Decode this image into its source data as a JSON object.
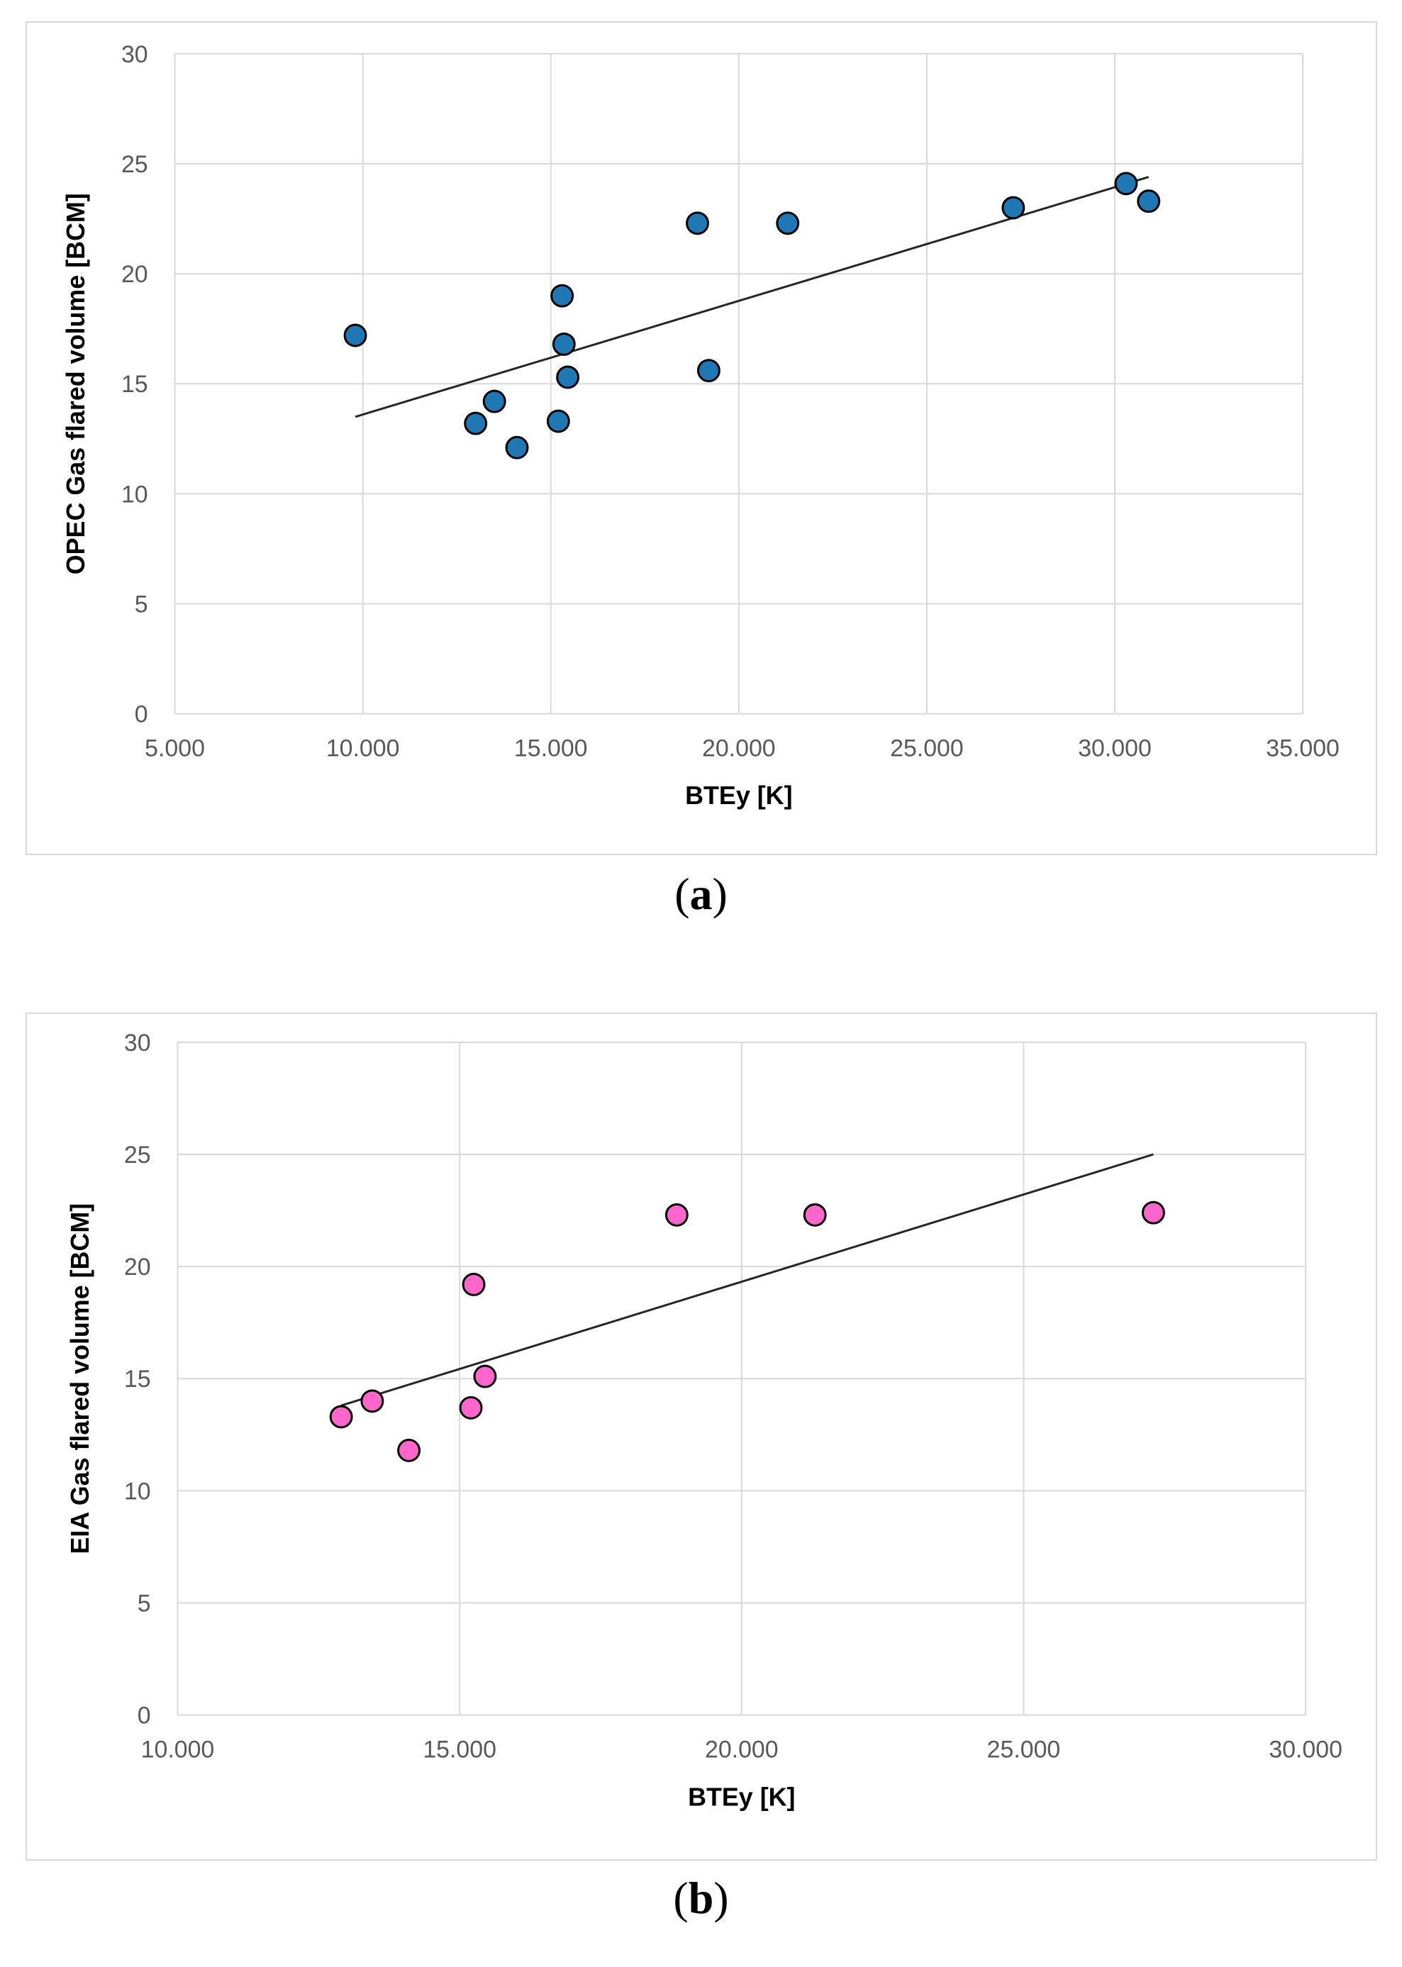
{
  "chart_data": [
    {
      "type": "scatter",
      "panel_label": "a",
      "xlabel": "BTEy [K]",
      "ylabel": "OPEC Gas flared volume [BCM]",
      "xlim": [
        5000,
        35000
      ],
      "ylim": [
        0,
        30
      ],
      "x_ticks": [
        "5.000",
        "10.000",
        "15.000",
        "20.000",
        "25.000",
        "30.000",
        "35.000"
      ],
      "y_ticks": [
        "0",
        "5",
        "10",
        "15",
        "20",
        "25",
        "30"
      ],
      "grid": true,
      "marker_color": "#1f77b4",
      "series": [
        {
          "points": [
            {
              "x": 9800,
              "y": 17.2
            },
            {
              "x": 13000,
              "y": 13.2
            },
            {
              "x": 13500,
              "y": 14.2
            },
            {
              "x": 14100,
              "y": 12.1
            },
            {
              "x": 15200,
              "y": 13.3
            },
            {
              "x": 15300,
              "y": 19.0
            },
            {
              "x": 15350,
              "y": 16.8
            },
            {
              "x": 15450,
              "y": 15.3
            },
            {
              "x": 18900,
              "y": 22.3
            },
            {
              "x": 19200,
              "y": 15.6
            },
            {
              "x": 21300,
              "y": 22.3
            },
            {
              "x": 27300,
              "y": 23.0
            },
            {
              "x": 30300,
              "y": 24.1
            },
            {
              "x": 30900,
              "y": 23.3
            }
          ]
        }
      ],
      "trendline": {
        "x": [
          9800,
          30900
        ],
        "y": [
          13.5,
          24.4
        ]
      }
    },
    {
      "type": "scatter",
      "panel_label": "b",
      "xlabel": "BTEy [K]",
      "ylabel": "EIA Gas flared volume [BCM]",
      "xlim": [
        10000,
        30000
      ],
      "ylim": [
        0,
        30
      ],
      "x_ticks": [
        "10.000",
        "15.000",
        "20.000",
        "25.000",
        "30.000"
      ],
      "y_ticks": [
        "0",
        "5",
        "10",
        "15",
        "20",
        "25",
        "30"
      ],
      "grid": true,
      "marker_color": "#ff66cc",
      "series": [
        {
          "points": [
            {
              "x": 12900,
              "y": 13.3
            },
            {
              "x": 13450,
              "y": 14.0
            },
            {
              "x": 14100,
              "y": 11.8
            },
            {
              "x": 15200,
              "y": 13.7
            },
            {
              "x": 15250,
              "y": 19.2
            },
            {
              "x": 15450,
              "y": 15.1
            },
            {
              "x": 18850,
              "y": 22.3
            },
            {
              "x": 21300,
              "y": 22.3
            },
            {
              "x": 27300,
              "y": 22.4
            }
          ]
        }
      ],
      "trendline": {
        "x": [
          12900,
          27300
        ],
        "y": [
          13.8,
          25.0
        ]
      }
    }
  ]
}
